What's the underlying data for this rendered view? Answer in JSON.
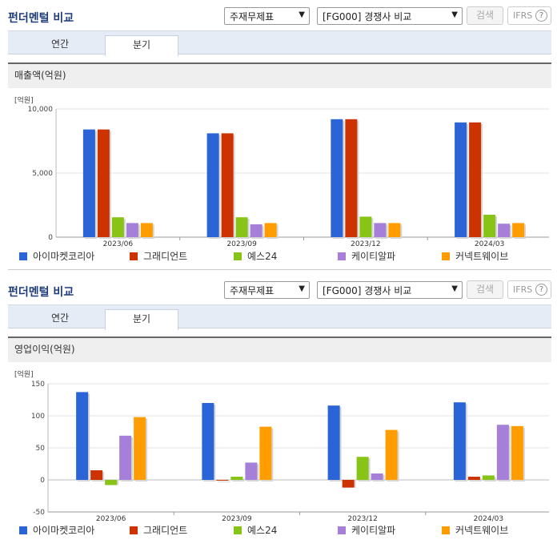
{
  "panels": [
    {
      "header": {
        "title": "펀더멘털 비교",
        "select_statement": "주재무제표",
        "select_group": "[FG000] 경쟁사 비교",
        "search_label": "검색",
        "ifrs_label": "IFRS",
        "help_glyph": "?"
      },
      "tabs": [
        {
          "label": "연간",
          "active": false
        },
        {
          "label": "분기",
          "active": true
        }
      ],
      "metric_label": "매출액(억원)",
      "unit_label": "[억원]"
    },
    {
      "header": {
        "title": "펀더멘털 비교",
        "select_statement": "주재무제표",
        "select_group": "[FG000] 경쟁사 비교",
        "search_label": "검색",
        "ifrs_label": "IFRS",
        "help_glyph": "?"
      },
      "tabs": [
        {
          "label": "연간",
          "active": false
        },
        {
          "label": "분기",
          "active": true
        }
      ],
      "metric_label": "영업이익(억원)",
      "unit_label": "[억원]"
    }
  ],
  "legend": [
    {
      "name": "아이마켓코리아",
      "color": "#2a64d6"
    },
    {
      "name": "그래디언트",
      "color": "#cc3300"
    },
    {
      "name": "예스24",
      "color": "#88c417"
    },
    {
      "name": "케이티알파",
      "color": "#a57fd8"
    },
    {
      "name": "커넥트웨이브",
      "color": "#ff9d00"
    }
  ],
  "chart_data": [
    {
      "type": "bar",
      "title": "매출액(억원)",
      "ylabel": "[억원]",
      "categories": [
        "2023/06",
        "2023/09",
        "2023/12",
        "2024/03"
      ],
      "ylim": [
        0,
        10000
      ],
      "yticks": [
        0,
        5000,
        10000
      ],
      "ytick_labels": [
        "0",
        "5,000",
        "10,000"
      ],
      "grid": true,
      "series": [
        {
          "name": "아이마켓코리아",
          "values": [
            8400,
            8100,
            9200,
            8950
          ]
        },
        {
          "name": "그래디언트",
          "values": [
            8400,
            8100,
            9200,
            8950
          ]
        },
        {
          "name": "예스24",
          "values": [
            1550,
            1550,
            1600,
            1750
          ]
        },
        {
          "name": "케이티알파",
          "values": [
            1100,
            1000,
            1100,
            1050
          ]
        },
        {
          "name": "커넥트웨이브",
          "values": [
            1100,
            1100,
            1100,
            1100
          ]
        }
      ]
    },
    {
      "type": "bar",
      "title": "영업이익(억원)",
      "ylabel": "[억원]",
      "categories": [
        "2023/06",
        "2023/09",
        "2023/12",
        "2024/03"
      ],
      "ylim": [
        -50,
        150
      ],
      "yticks": [
        -50,
        0,
        50,
        100,
        150
      ],
      "ytick_labels": [
        "-50",
        "0",
        "50",
        "100",
        "150"
      ],
      "grid": true,
      "series": [
        {
          "name": "아이마켓코리아",
          "values": [
            137,
            120,
            116,
            121
          ]
        },
        {
          "name": "그래디언트",
          "values": [
            15,
            0,
            -12,
            5
          ]
        },
        {
          "name": "예스24",
          "values": [
            -8,
            5,
            36,
            7
          ]
        },
        {
          "name": "케이티알파",
          "values": [
            69,
            27,
            10,
            86
          ]
        },
        {
          "name": "커넥트웨이브",
          "values": [
            98,
            83,
            78,
            84
          ]
        }
      ]
    }
  ]
}
